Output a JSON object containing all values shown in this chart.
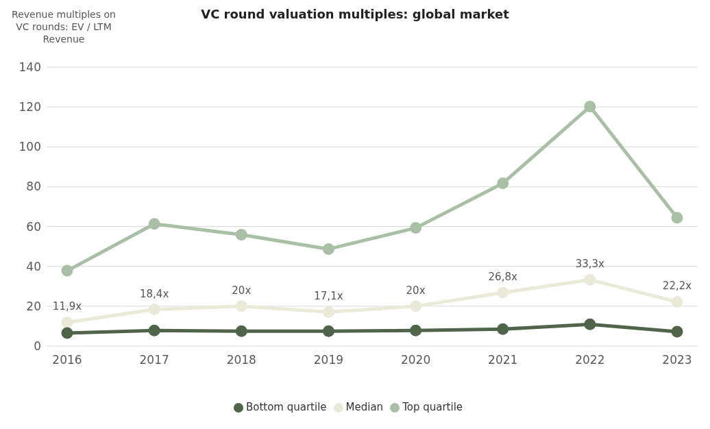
{
  "chart_data": {
    "type": "line",
    "title": "VC round valuation multiples: global market",
    "ylabel": "Revenue multiples on VC rounds: EV / LTM Revenue",
    "categories": [
      "2016",
      "2017",
      "2018",
      "2019",
      "2020",
      "2021",
      "2022",
      "2023"
    ],
    "series": [
      {
        "name": "Top quartile",
        "color": "#a9bfa6",
        "values": [
          37.8,
          61.3,
          55.9,
          48.7,
          59.3,
          81.7,
          120.2,
          64.4
        ]
      },
      {
        "name": "Median",
        "color": "#ebe9d8",
        "values": [
          11.9,
          18.4,
          20,
          17.1,
          20,
          26.8,
          33.3,
          22.2
        ],
        "value_labels": [
          "11,9x",
          "18,4x",
          "20x",
          "17,1x",
          "20x",
          "26,8x",
          "33,3x",
          "22,2x"
        ]
      },
      {
        "name": "Bottom quartile",
        "color": "#4f6448",
        "values": [
          6.5,
          7.8,
          7.5,
          7.5,
          7.8,
          8.5,
          10.9,
          7.2
        ]
      }
    ],
    "ylim": [
      0,
      140
    ],
    "yticks": [
      0,
      20,
      40,
      60,
      80,
      100,
      120,
      140
    ],
    "grid": "y",
    "legend": "bottom",
    "marker": "circle",
    "line_style": "solid"
  }
}
